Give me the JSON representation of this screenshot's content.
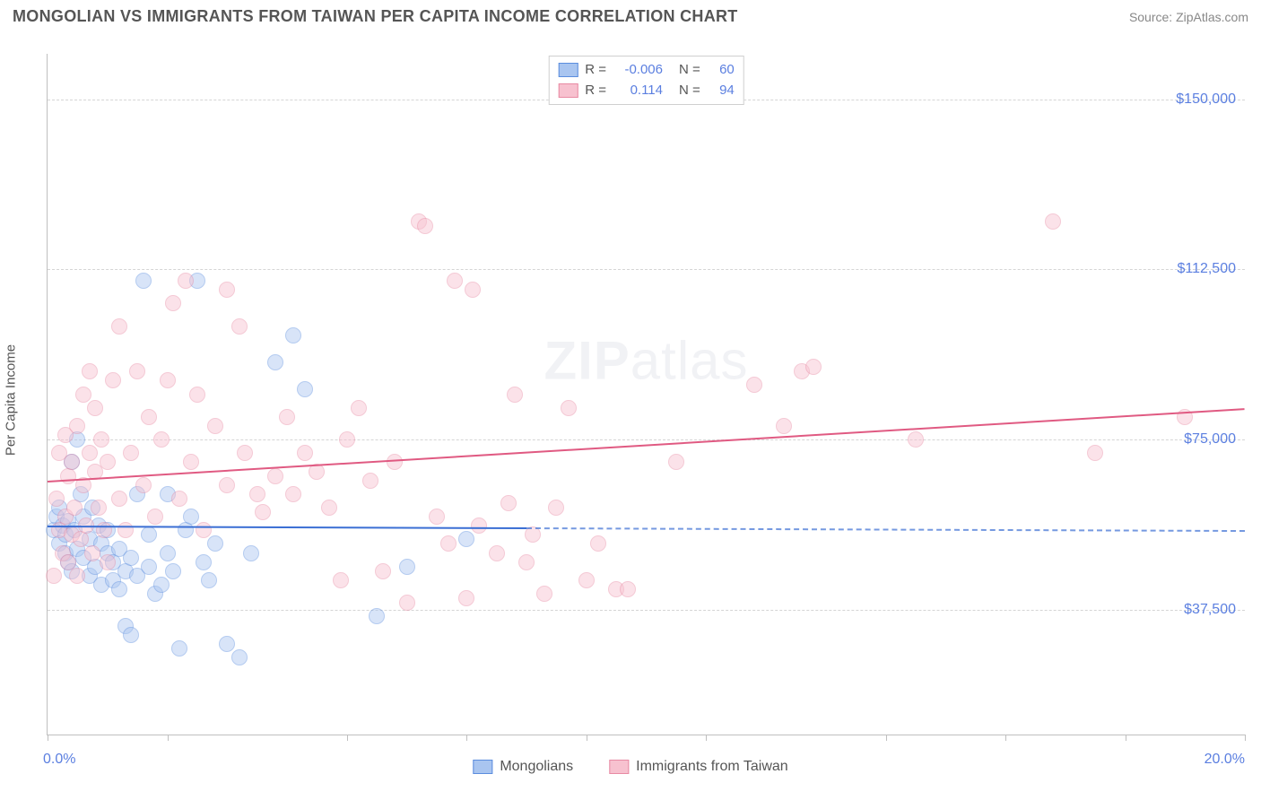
{
  "title": "MONGOLIAN VS IMMIGRANTS FROM TAIWAN PER CAPITA INCOME CORRELATION CHART",
  "source_prefix": "Source: ",
  "source_name": "ZipAtlas.com",
  "watermark_zip": "ZIP",
  "watermark_atlas": "atlas",
  "chart": {
    "type": "scatter",
    "ylabel": "Per Capita Income",
    "xlim": [
      0,
      20
    ],
    "ylim": [
      10000,
      160000
    ],
    "xtick_positions_pct": [
      0,
      10,
      25,
      35,
      45,
      55,
      70,
      80,
      90,
      100
    ],
    "xlabel_min": "0.0%",
    "xlabel_max": "20.0%",
    "ytick_values": [
      37500,
      75000,
      112500,
      150000
    ],
    "ytick_labels": [
      "$37,500",
      "$75,000",
      "$112,500",
      "$150,000"
    ],
    "grid_color": "#d5d5d5",
    "axis_color": "#bfbfbf",
    "background_color": "#ffffff",
    "label_color": "#5b7fe0",
    "text_color": "#555555",
    "marker_radius": 9,
    "marker_opacity": 0.45,
    "series": [
      {
        "name": "Mongolians",
        "legend_label": "Mongolians",
        "fill_color": "#a9c5f0",
        "stroke_color": "#5b8dde",
        "line_color": "#3b6fd4",
        "R": "-0.006",
        "N": "60",
        "trend": {
          "y_at_xmin": 56000,
          "y_at_xmax": 55000,
          "solid_until_x": 8.0
        },
        "points": [
          {
            "x": 0.1,
            "y": 55000
          },
          {
            "x": 0.15,
            "y": 58000
          },
          {
            "x": 0.2,
            "y": 52000
          },
          {
            "x": 0.2,
            "y": 60000
          },
          {
            "x": 0.25,
            "y": 56000
          },
          {
            "x": 0.3,
            "y": 50000
          },
          {
            "x": 0.3,
            "y": 54000
          },
          {
            "x": 0.35,
            "y": 48000
          },
          {
            "x": 0.35,
            "y": 57000
          },
          {
            "x": 0.4,
            "y": 70000
          },
          {
            "x": 0.4,
            "y": 46000
          },
          {
            "x": 0.45,
            "y": 55000
          },
          {
            "x": 0.5,
            "y": 75000
          },
          {
            "x": 0.5,
            "y": 51000
          },
          {
            "x": 0.55,
            "y": 63000
          },
          {
            "x": 0.6,
            "y": 49000
          },
          {
            "x": 0.6,
            "y": 58000
          },
          {
            "x": 0.7,
            "y": 45000
          },
          {
            "x": 0.7,
            "y": 53000
          },
          {
            "x": 0.75,
            "y": 60000
          },
          {
            "x": 0.8,
            "y": 47000
          },
          {
            "x": 0.85,
            "y": 56000
          },
          {
            "x": 0.9,
            "y": 43000
          },
          {
            "x": 0.9,
            "y": 52000
          },
          {
            "x": 1.0,
            "y": 50000
          },
          {
            "x": 1.0,
            "y": 55000
          },
          {
            "x": 1.1,
            "y": 44000
          },
          {
            "x": 1.1,
            "y": 48000
          },
          {
            "x": 1.2,
            "y": 42000
          },
          {
            "x": 1.2,
            "y": 51000
          },
          {
            "x": 1.3,
            "y": 34000
          },
          {
            "x": 1.3,
            "y": 46000
          },
          {
            "x": 1.4,
            "y": 32000
          },
          {
            "x": 1.4,
            "y": 49000
          },
          {
            "x": 1.5,
            "y": 45000
          },
          {
            "x": 1.5,
            "y": 63000
          },
          {
            "x": 1.6,
            "y": 110000
          },
          {
            "x": 1.7,
            "y": 47000
          },
          {
            "x": 1.7,
            "y": 54000
          },
          {
            "x": 1.8,
            "y": 41000
          },
          {
            "x": 1.9,
            "y": 43000
          },
          {
            "x": 2.0,
            "y": 50000
          },
          {
            "x": 2.0,
            "y": 63000
          },
          {
            "x": 2.1,
            "y": 46000
          },
          {
            "x": 2.2,
            "y": 29000
          },
          {
            "x": 2.3,
            "y": 55000
          },
          {
            "x": 2.4,
            "y": 58000
          },
          {
            "x": 2.5,
            "y": 110000
          },
          {
            "x": 2.6,
            "y": 48000
          },
          {
            "x": 2.7,
            "y": 44000
          },
          {
            "x": 2.8,
            "y": 52000
          },
          {
            "x": 3.0,
            "y": 30000
          },
          {
            "x": 3.2,
            "y": 27000
          },
          {
            "x": 3.4,
            "y": 50000
          },
          {
            "x": 3.8,
            "y": 92000
          },
          {
            "x": 4.1,
            "y": 98000
          },
          {
            "x": 4.3,
            "y": 86000
          },
          {
            "x": 5.5,
            "y": 36000
          },
          {
            "x": 6.0,
            "y": 47000
          },
          {
            "x": 7.0,
            "y": 53000
          }
        ]
      },
      {
        "name": "Immigrants from Taiwan",
        "legend_label": "Immigrants from Taiwan",
        "fill_color": "#f7c1cf",
        "stroke_color": "#e88aa3",
        "line_color": "#e05a82",
        "R": "0.114",
        "N": "94",
        "trend": {
          "y_at_xmin": 66000,
          "y_at_xmax": 82000,
          "solid_until_x": 20.0
        },
        "points": [
          {
            "x": 0.1,
            "y": 45000
          },
          {
            "x": 0.15,
            "y": 62000
          },
          {
            "x": 0.2,
            "y": 55000
          },
          {
            "x": 0.2,
            "y": 72000
          },
          {
            "x": 0.25,
            "y": 50000
          },
          {
            "x": 0.3,
            "y": 58000
          },
          {
            "x": 0.3,
            "y": 76000
          },
          {
            "x": 0.35,
            "y": 48000
          },
          {
            "x": 0.35,
            "y": 67000
          },
          {
            "x": 0.4,
            "y": 54000
          },
          {
            "x": 0.4,
            "y": 70000
          },
          {
            "x": 0.45,
            "y": 60000
          },
          {
            "x": 0.5,
            "y": 45000
          },
          {
            "x": 0.5,
            "y": 78000
          },
          {
            "x": 0.55,
            "y": 53000
          },
          {
            "x": 0.6,
            "y": 65000
          },
          {
            "x": 0.6,
            "y": 85000
          },
          {
            "x": 0.65,
            "y": 56000
          },
          {
            "x": 0.7,
            "y": 72000
          },
          {
            "x": 0.7,
            "y": 90000
          },
          {
            "x": 0.75,
            "y": 50000
          },
          {
            "x": 0.8,
            "y": 68000
          },
          {
            "x": 0.8,
            "y": 82000
          },
          {
            "x": 0.85,
            "y": 60000
          },
          {
            "x": 0.9,
            "y": 75000
          },
          {
            "x": 0.95,
            "y": 55000
          },
          {
            "x": 1.0,
            "y": 48000
          },
          {
            "x": 1.0,
            "y": 70000
          },
          {
            "x": 1.1,
            "y": 88000
          },
          {
            "x": 1.2,
            "y": 62000
          },
          {
            "x": 1.2,
            "y": 100000
          },
          {
            "x": 1.3,
            "y": 55000
          },
          {
            "x": 1.4,
            "y": 72000
          },
          {
            "x": 1.5,
            "y": 90000
          },
          {
            "x": 1.6,
            "y": 65000
          },
          {
            "x": 1.7,
            "y": 80000
          },
          {
            "x": 1.8,
            "y": 58000
          },
          {
            "x": 1.9,
            "y": 75000
          },
          {
            "x": 2.0,
            "y": 88000
          },
          {
            "x": 2.1,
            "y": 105000
          },
          {
            "x": 2.2,
            "y": 62000
          },
          {
            "x": 2.3,
            "y": 110000
          },
          {
            "x": 2.4,
            "y": 70000
          },
          {
            "x": 2.5,
            "y": 85000
          },
          {
            "x": 2.6,
            "y": 55000
          },
          {
            "x": 2.8,
            "y": 78000
          },
          {
            "x": 3.0,
            "y": 108000
          },
          {
            "x": 3.0,
            "y": 65000
          },
          {
            "x": 3.2,
            "y": 100000
          },
          {
            "x": 3.3,
            "y": 72000
          },
          {
            "x": 3.5,
            "y": 63000
          },
          {
            "x": 3.6,
            "y": 59000
          },
          {
            "x": 3.8,
            "y": 67000
          },
          {
            "x": 4.0,
            "y": 80000
          },
          {
            "x": 4.1,
            "y": 63000
          },
          {
            "x": 4.3,
            "y": 72000
          },
          {
            "x": 4.5,
            "y": 68000
          },
          {
            "x": 4.7,
            "y": 60000
          },
          {
            "x": 4.9,
            "y": 44000
          },
          {
            "x": 5.0,
            "y": 75000
          },
          {
            "x": 5.2,
            "y": 82000
          },
          {
            "x": 5.4,
            "y": 66000
          },
          {
            "x": 5.6,
            "y": 46000
          },
          {
            "x": 5.8,
            "y": 70000
          },
          {
            "x": 6.0,
            "y": 39000
          },
          {
            "x": 6.2,
            "y": 123000
          },
          {
            "x": 6.3,
            "y": 122000
          },
          {
            "x": 6.5,
            "y": 58000
          },
          {
            "x": 6.7,
            "y": 52000
          },
          {
            "x": 6.8,
            "y": 110000
          },
          {
            "x": 7.0,
            "y": 40000
          },
          {
            "x": 7.1,
            "y": 108000
          },
          {
            "x": 7.2,
            "y": 56000
          },
          {
            "x": 7.5,
            "y": 50000
          },
          {
            "x": 7.7,
            "y": 61000
          },
          {
            "x": 7.8,
            "y": 85000
          },
          {
            "x": 8.0,
            "y": 48000
          },
          {
            "x": 8.1,
            "y": 54000
          },
          {
            "x": 8.3,
            "y": 41000
          },
          {
            "x": 8.5,
            "y": 60000
          },
          {
            "x": 8.7,
            "y": 82000
          },
          {
            "x": 9.0,
            "y": 44000
          },
          {
            "x": 9.2,
            "y": 52000
          },
          {
            "x": 9.5,
            "y": 42000
          },
          {
            "x": 9.7,
            "y": 42000
          },
          {
            "x": 10.5,
            "y": 70000
          },
          {
            "x": 11.8,
            "y": 87000
          },
          {
            "x": 12.3,
            "y": 78000
          },
          {
            "x": 12.6,
            "y": 90000
          },
          {
            "x": 12.8,
            "y": 91000
          },
          {
            "x": 14.5,
            "y": 75000
          },
          {
            "x": 16.8,
            "y": 123000
          },
          {
            "x": 17.5,
            "y": 72000
          },
          {
            "x": 19.0,
            "y": 80000
          }
        ]
      }
    ]
  },
  "stat_legend": {
    "R_prefix": "R =",
    "N_prefix": "N ="
  }
}
